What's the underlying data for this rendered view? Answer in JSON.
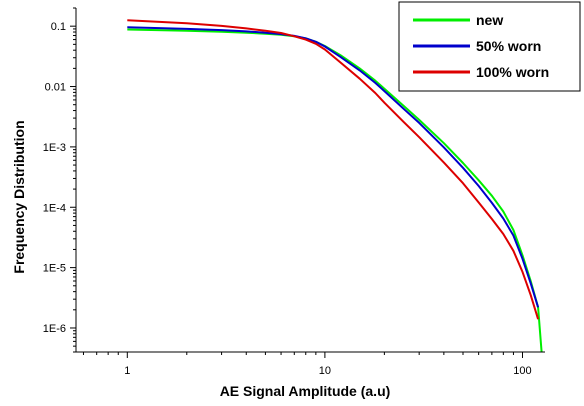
{
  "chart_data": {
    "type": "line",
    "xlabel": "AE Signal Amplitude (a.u)",
    "ylabel": "Frequency Distribution",
    "xscale": "log",
    "yscale": "log",
    "xlim": [
      0.55,
      130
    ],
    "ylim": [
      4e-07,
      0.2
    ],
    "x_tick_labels": [
      {
        "value": 1,
        "label": "1"
      },
      {
        "value": 10,
        "label": "10"
      },
      {
        "value": 100,
        "label": "100"
      }
    ],
    "y_tick_labels": [
      {
        "value": 0.1,
        "label": "0.1"
      },
      {
        "value": 0.01,
        "label": "0.01"
      },
      {
        "value": 0.001,
        "label": "1E-3"
      },
      {
        "value": 0.0001,
        "label": "1E-4"
      },
      {
        "value": 1e-05,
        "label": "1E-5"
      },
      {
        "value": 1e-06,
        "label": "1E-6"
      }
    ],
    "grid": false,
    "legend_position": "top-right",
    "series": [
      {
        "name": "new",
        "color": "#00ee00",
        "x": [
          1,
          2,
          3,
          4,
          5,
          6,
          7,
          8,
          9,
          10,
          12,
          15,
          18,
          20,
          25,
          30,
          40,
          50,
          60,
          70,
          80,
          90,
          100,
          110,
          120,
          125
        ],
        "y": [
          0.088,
          0.084,
          0.081,
          0.078,
          0.075,
          0.072,
          0.068,
          0.063,
          0.055,
          0.047,
          0.033,
          0.02,
          0.0125,
          0.0092,
          0.0048,
          0.0028,
          0.00115,
          0.00054,
          0.00028,
          0.000155,
          8.5e-05,
          4.2e-05,
          1.6e-05,
          6e-06,
          2.2e-06,
          4e-07
        ]
      },
      {
        "name": "50% worn",
        "color": "#0000cc",
        "x": [
          1,
          2,
          3,
          4,
          5,
          6,
          7,
          8,
          9,
          10,
          12,
          15,
          18,
          20,
          25,
          30,
          40,
          50,
          60,
          70,
          80,
          90,
          100,
          110,
          120
        ],
        "y": [
          0.096,
          0.09,
          0.086,
          0.082,
          0.078,
          0.074,
          0.069,
          0.063,
          0.055,
          0.046,
          0.031,
          0.0185,
          0.0115,
          0.0084,
          0.0043,
          0.0025,
          0.00098,
          0.00045,
          0.000225,
          0.000118,
          6.5e-05,
          3.4e-05,
          1.4e-05,
          5.5e-06,
          2.2e-06
        ]
      },
      {
        "name": "100% worn",
        "color": "#dd0000",
        "x": [
          1,
          2,
          3,
          4,
          5,
          6,
          7,
          8,
          9,
          10,
          12,
          15,
          18,
          20,
          25,
          30,
          40,
          50,
          60,
          70,
          80,
          90,
          100,
          110,
          120
        ],
        "y": [
          0.125,
          0.112,
          0.101,
          0.092,
          0.084,
          0.077,
          0.068,
          0.06,
          0.051,
          0.041,
          0.025,
          0.0135,
          0.0078,
          0.0054,
          0.0026,
          0.00145,
          0.00055,
          0.00025,
          0.00012,
          6.4e-05,
          3.6e-05,
          1.9e-05,
          8.5e-06,
          3.5e-06,
          1.4e-06
        ]
      }
    ]
  }
}
